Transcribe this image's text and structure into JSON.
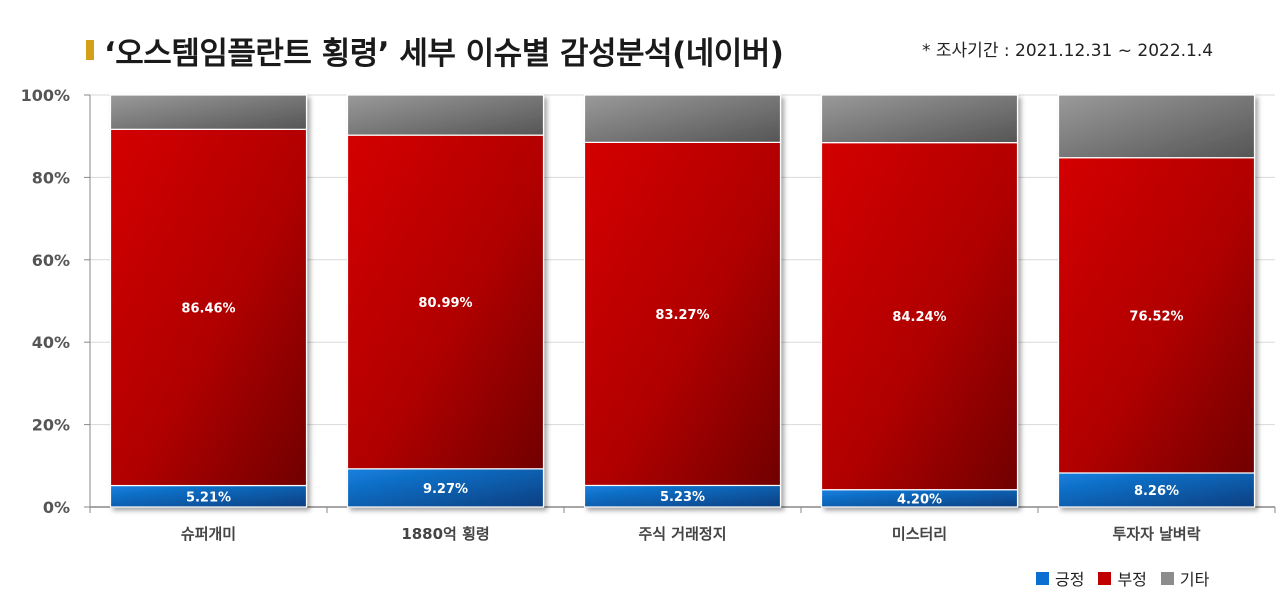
{
  "header": {
    "title": "‘오스템임플란트 횡령’ 세부 이슈별 감성분석(네이버)",
    "period": "* 조사기간 : 2021.12.31 ~ 2022.1.4"
  },
  "colors": {
    "accent_mark": "#d4a017",
    "positive": "#0a6fd0",
    "negative": "#c00000",
    "other": "#8c8c8c"
  },
  "chart_data": {
    "type": "bar",
    "stacked": true,
    "percent": true,
    "categories": [
      "슈퍼개미",
      "1880억 횡령",
      "주식 거래정지",
      "미스터리",
      "투자자 날벼락"
    ],
    "series": [
      {
        "name": "긍정",
        "values": [
          5.21,
          9.27,
          5.23,
          4.2,
          8.26
        ],
        "labels": [
          "5.21%",
          "9.27%",
          "5.23%",
          "4.20%",
          "8.26%"
        ]
      },
      {
        "name": "부정",
        "values": [
          86.46,
          80.99,
          83.27,
          84.24,
          76.52
        ],
        "labels": [
          "86.46%",
          "80.99%",
          "83.27%",
          "84.24%",
          "76.52%"
        ]
      },
      {
        "name": "기타",
        "values": [
          8.33,
          9.74,
          11.5,
          11.56,
          15.22
        ]
      }
    ],
    "yticks": [
      "0%",
      "20%",
      "40%",
      "60%",
      "80%",
      "100%"
    ],
    "ylim": [
      0,
      100
    ],
    "legend_position": "bottom-right",
    "grid": true
  }
}
